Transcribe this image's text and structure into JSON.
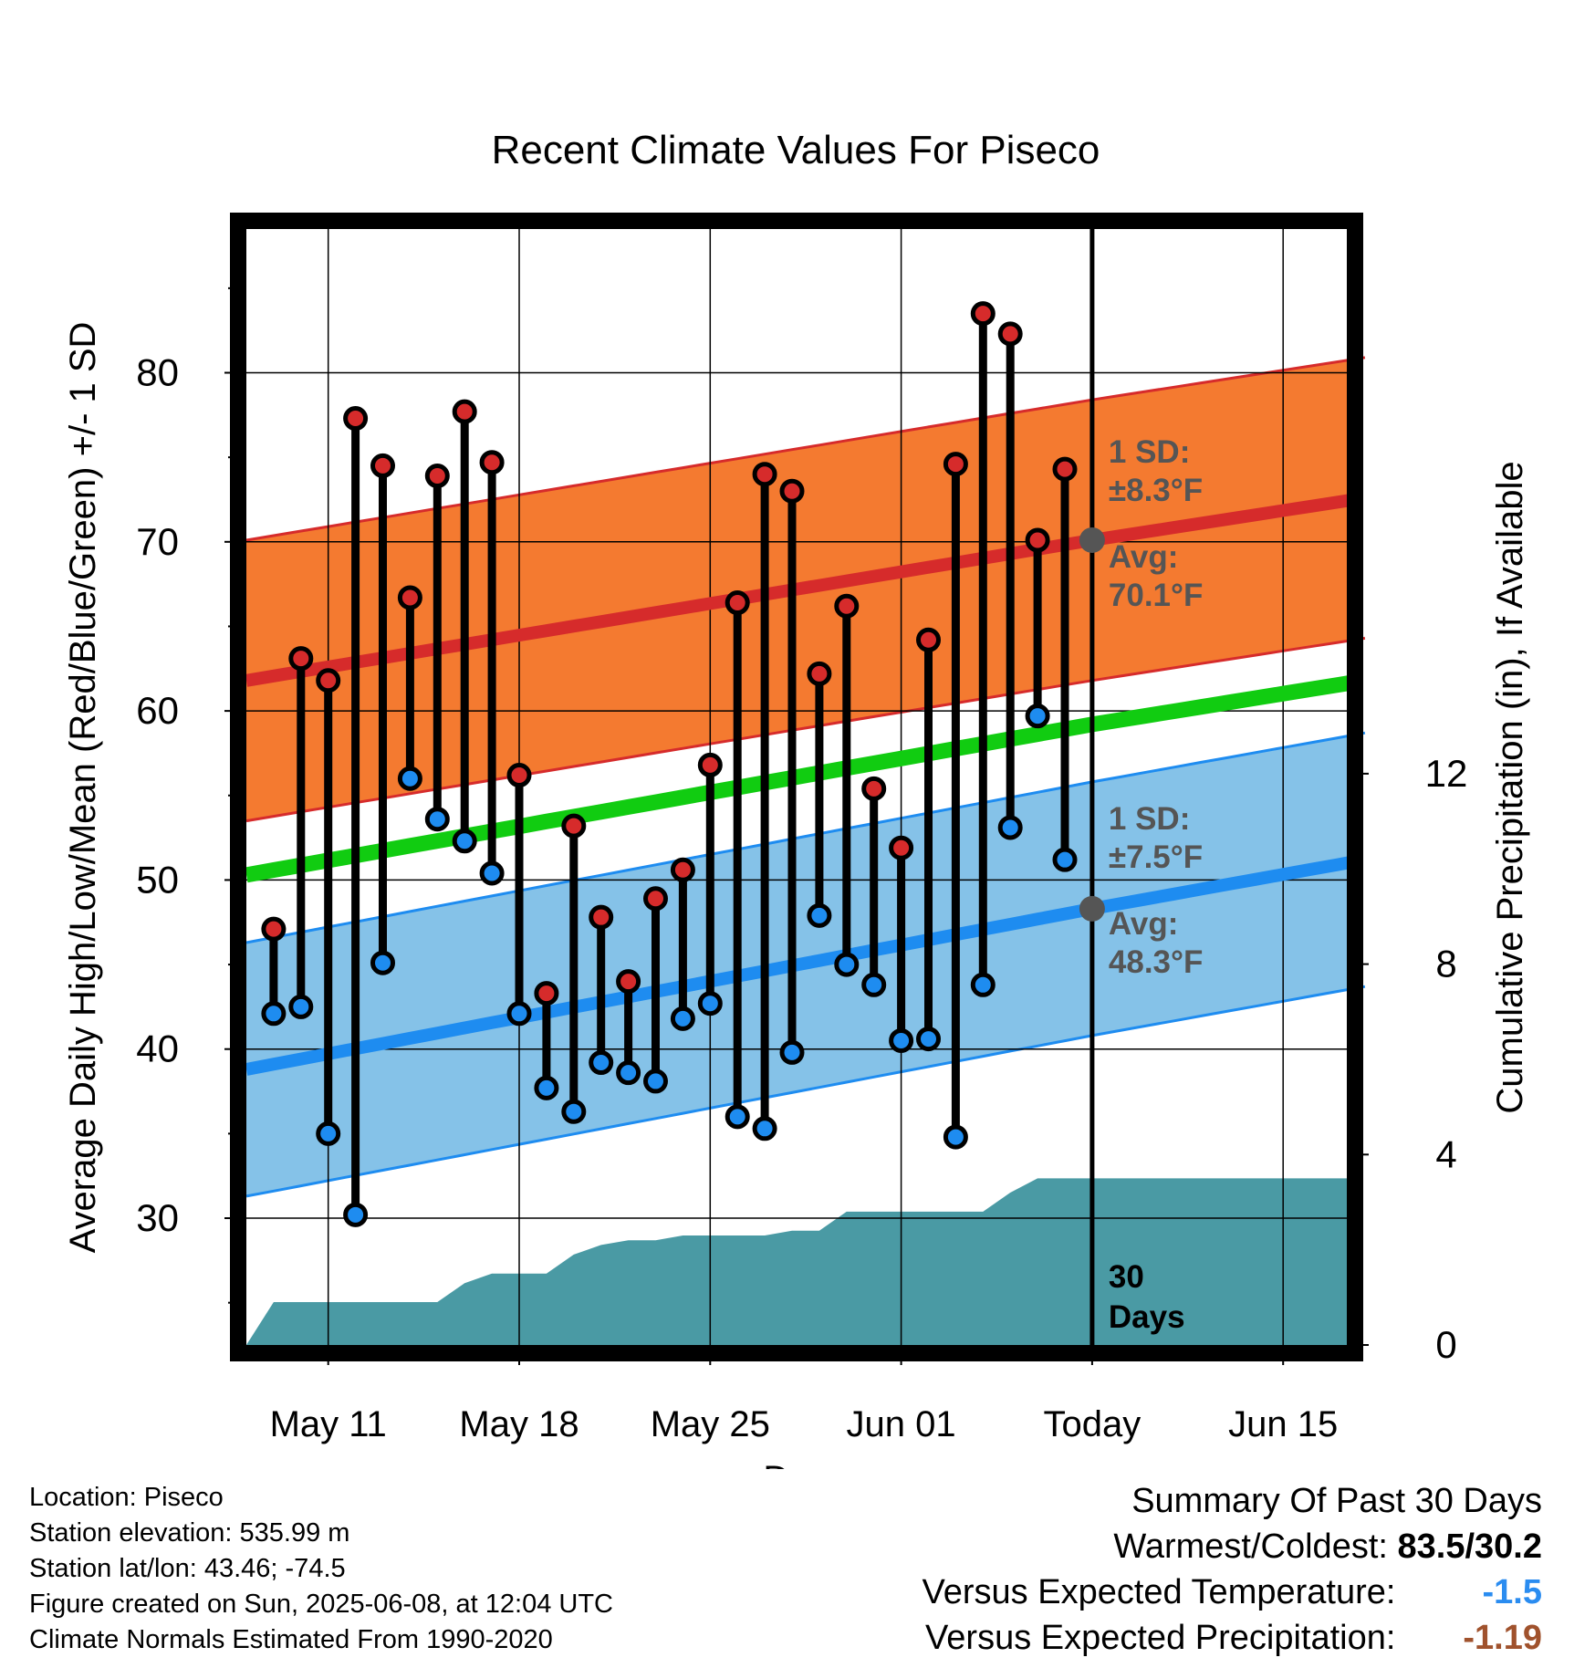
{
  "chart_data": {
    "type": "line",
    "title": "Recent Climate Values For Piseco",
    "xlabel": "Day",
    "ylabel": "Average Daily High/Low/Mean (Red/Blue/Green) +/- 1 SD",
    "y2label": "Cumulative Precipitation (in), If Available",
    "x_tick_labels": [
      "May 11",
      "May 18",
      "May 25",
      "Jun 01",
      "Today",
      "Jun 15"
    ],
    "y_ticks": [
      30,
      40,
      50,
      60,
      70,
      80
    ],
    "y2_ticks": [
      0,
      4,
      8,
      12
    ],
    "ylim": [
      22.5,
      88.5
    ],
    "y2lim": [
      0,
      23.44
    ],
    "x_range_days": [
      0,
      41
    ],
    "today_index": 31,
    "grid": true,
    "annotations": {
      "high_sd": "1 SD:",
      "high_sd_value": "±8.3°F",
      "high_avg": "Avg:",
      "high_avg_value": "70.1°F",
      "low_sd": "1 SD:",
      "low_sd_value": "±7.5°F",
      "low_avg": "Avg:",
      "low_avg_value": "48.3°F",
      "window_num": "30",
      "window_unit": "Days"
    },
    "normal_high_mean": [
      [
        0,
        61.8
      ],
      [
        31,
        70.1
      ],
      [
        41,
        72.6
      ]
    ],
    "normal_high_sd": 8.3,
    "normal_mean": [
      [
        0,
        50.3
      ],
      [
        31,
        59.2
      ],
      [
        41,
        61.8
      ]
    ],
    "normal_low_mean": [
      [
        0,
        38.8
      ],
      [
        31,
        48.3
      ],
      [
        41,
        51.2
      ]
    ],
    "normal_low_sd": 7.5,
    "colors": {
      "high_band": "#f47a30",
      "high_line": "#d62b2b",
      "low_band": "#85c2e8",
      "low_line": "#1e8cf0",
      "mean_line": "#11cc11",
      "precip": "#4a9aa4",
      "marker_avg": "#555555"
    },
    "series": [
      {
        "name": "High",
        "x": [
          1,
          2,
          3,
          4,
          5,
          6,
          7,
          8,
          9,
          10,
          11,
          12,
          13,
          14,
          15,
          16,
          17,
          18,
          19,
          20,
          21,
          22,
          23,
          24,
          25,
          26,
          27,
          28,
          29,
          30
        ],
        "values": [
          47.1,
          63.1,
          61.8,
          77.3,
          74.5,
          66.7,
          73.9,
          77.7,
          74.7,
          56.2,
          43.3,
          53.2,
          47.8,
          44.0,
          48.9,
          50.6,
          56.8,
          66.4,
          74.0,
          73.0,
          62.2,
          66.2,
          55.4,
          51.9,
          64.2,
          74.6,
          83.5,
          82.3,
          70.1,
          74.3
        ]
      },
      {
        "name": "Low",
        "x": [
          1,
          2,
          3,
          4,
          5,
          6,
          7,
          8,
          9,
          10,
          11,
          12,
          13,
          14,
          15,
          16,
          17,
          18,
          19,
          20,
          21,
          22,
          23,
          24,
          25,
          26,
          27,
          28,
          29,
          30
        ],
        "values": [
          42.1,
          42.5,
          35.0,
          30.2,
          45.1,
          56.0,
          53.6,
          52.3,
          50.4,
          42.1,
          37.7,
          36.3,
          39.2,
          38.6,
          38.1,
          41.8,
          42.7,
          36.0,
          35.3,
          39.8,
          47.9,
          45.0,
          43.8,
          40.5,
          40.6,
          34.8,
          43.8,
          53.1,
          59.7,
          51.2
        ]
      },
      {
        "name": "Cumulative Precipitation",
        "x": [
          0,
          1,
          2,
          3,
          4,
          5,
          6,
          7,
          8,
          9,
          10,
          11,
          12,
          13,
          14,
          15,
          16,
          17,
          18,
          19,
          20,
          21,
          22,
          23,
          24,
          25,
          26,
          27,
          28,
          29,
          30,
          31,
          41
        ],
        "values": [
          0.0,
          0.9,
          0.9,
          0.9,
          0.9,
          0.9,
          0.9,
          0.9,
          1.3,
          1.5,
          1.5,
          1.5,
          1.9,
          2.1,
          2.2,
          2.2,
          2.3,
          2.3,
          2.3,
          2.3,
          2.4,
          2.4,
          2.8,
          2.8,
          2.8,
          2.8,
          2.8,
          2.8,
          3.2,
          3.5,
          3.5,
          3.5,
          3.5
        ]
      }
    ]
  },
  "footer": {
    "location": "Location: Piseco",
    "elevation": "Station elevation: 535.99 m",
    "latlon": "Station lat/lon: 43.46; -74.5",
    "created": "Figure created on Sun, 2025-06-08, at 12:04 UTC",
    "normals": "Climate Normals Estimated From 1990-2020"
  },
  "summary": {
    "title": "Summary Of Past 30 Days",
    "warmest_label": "Warmest/Coldest:",
    "warmest_value": "83.5/30.2",
    "temp_label": "Versus Expected Temperature:",
    "temp_value": "-1.5",
    "temp_color": "#2a8cf0",
    "precip_label": "Versus Expected Precipitation:",
    "precip_value": "-1.19",
    "precip_color": "#a0522d"
  }
}
